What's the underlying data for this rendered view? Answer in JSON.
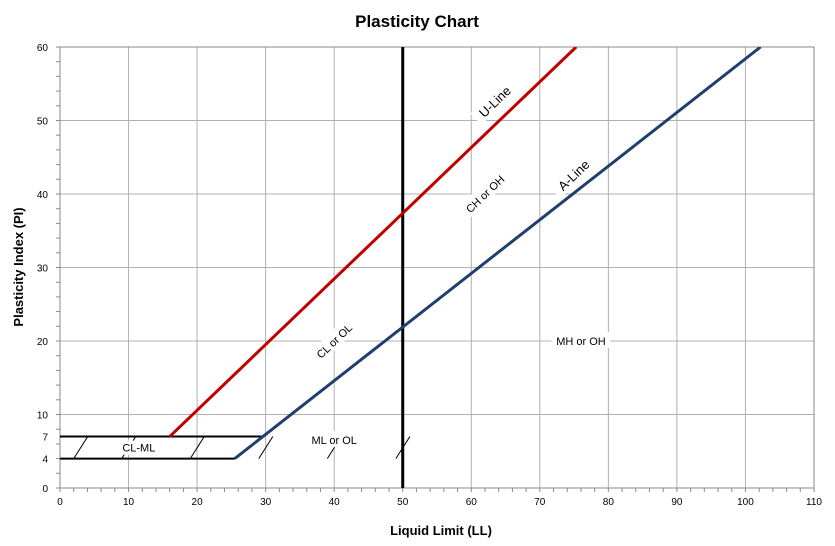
{
  "chart_data": {
    "type": "line",
    "title": "Plasticity Chart",
    "xlabel": "Liquid Limit (LL)",
    "ylabel": "Plasticity Index (PI)",
    "xlim": [
      0,
      110
    ],
    "ylim": [
      0,
      60
    ],
    "x_ticks": [
      0,
      10,
      20,
      30,
      40,
      50,
      60,
      70,
      80,
      90,
      100,
      110
    ],
    "y_ticks": [
      0,
      4,
      7,
      10,
      20,
      30,
      40,
      50,
      60
    ],
    "grid": true,
    "series": [
      {
        "name": "U-Line",
        "color": "#c00000",
        "x": [
          16,
          75.3
        ],
        "y": [
          7,
          60
        ]
      },
      {
        "name": "A-Line",
        "color": "#1f3f6e",
        "x": [
          25.5,
          29.6,
          102.2
        ],
        "y": [
          4,
          7,
          60
        ]
      }
    ],
    "vertical_line": {
      "x": 50,
      "color": "#000000"
    },
    "hatched_zone": {
      "label": "CL-ML",
      "x_left": 0,
      "y_range": [
        4,
        7
      ]
    },
    "zone_labels": [
      {
        "text": "CL or OL",
        "x": 40,
        "y": 20,
        "rotate": true
      },
      {
        "text": "CH or OH",
        "x": 62,
        "y": 40,
        "rotate": true
      },
      {
        "text": "MH or OH",
        "x": 76,
        "y": 20,
        "rotate": false
      },
      {
        "text": "ML or OL",
        "x": 40,
        "y": 6.5,
        "rotate": false
      },
      {
        "text": "U-Line",
        "x": 63.5,
        "y": 52.5,
        "rotate": true
      },
      {
        "text": "A-Line",
        "x": 75,
        "y": 42.5,
        "rotate": true
      }
    ]
  }
}
